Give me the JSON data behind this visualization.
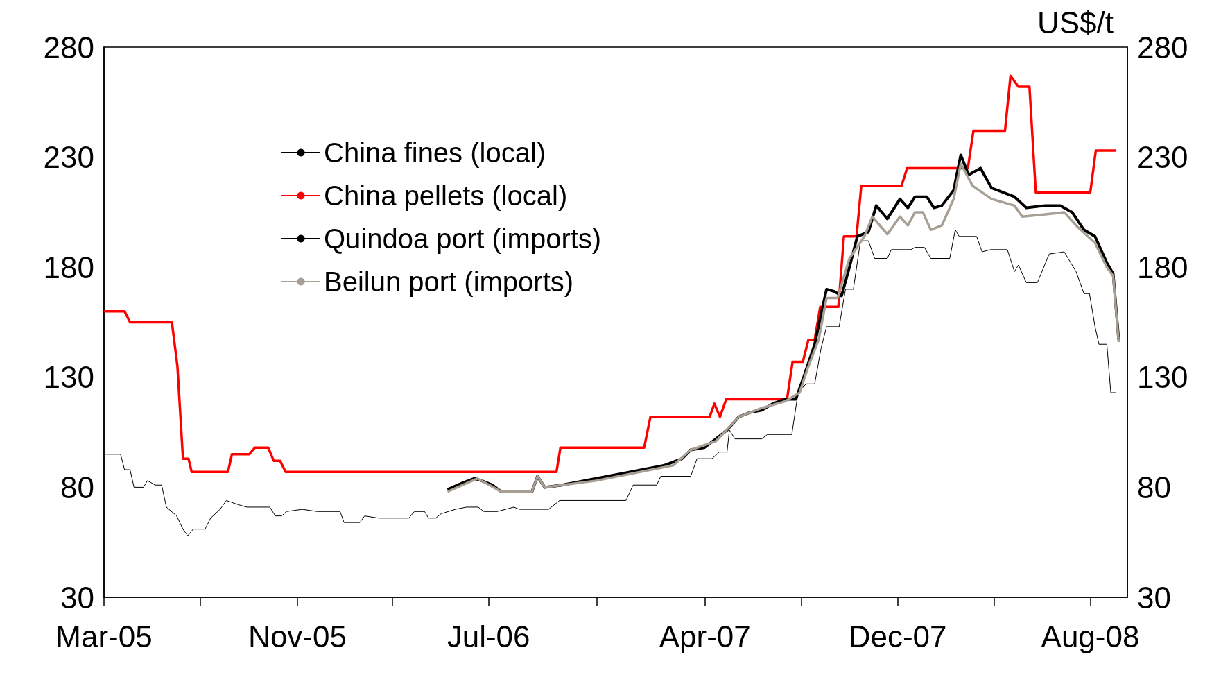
{
  "chart_data": {
    "type": "line",
    "y2label": "US$/t",
    "xlim": [
      "2005-03-01",
      "2008-09-17"
    ],
    "xticks": [
      {
        "value": "2005-03-01",
        "label": "Mar-05"
      },
      {
        "value": "2005-07-01",
        "label": null
      },
      {
        "value": "2005-11-01",
        "label": "Nov-05"
      },
      {
        "value": "2006-03-01",
        "label": null
      },
      {
        "value": "2006-07-01",
        "label": "Jul-06"
      },
      {
        "value": "2006-11-15",
        "label": null
      },
      {
        "value": "2007-04-01",
        "label": "Apr-07"
      },
      {
        "value": "2007-08-01",
        "label": null
      },
      {
        "value": "2007-12-01",
        "label": "Dec-07"
      },
      {
        "value": "2008-04-01",
        "label": null
      },
      {
        "value": "2008-08-01",
        "label": "Aug-08"
      }
    ],
    "ylim": [
      30,
      280
    ],
    "yticks": [
      30,
      80,
      130,
      180,
      230,
      280
    ],
    "y2lim": [
      30,
      280
    ],
    "y2ticks": [
      30,
      80,
      130,
      180,
      230,
      280
    ],
    "grid": false,
    "legend": "top left",
    "series": [
      {
        "name": "China fines (local)",
        "color": "#000000",
        "x": [
          "2005-03-01",
          "2005-03-22",
          "2005-03-27",
          "2005-04-03",
          "2005-04-08",
          "2005-04-20",
          "2005-04-25",
          "2005-05-05",
          "2005-05-13",
          "2005-05-19",
          "2005-06-01",
          "2005-06-09",
          "2005-06-15",
          "2005-06-22",
          "2005-07-07",
          "2005-07-14",
          "2005-07-26",
          "2005-08-03",
          "2005-08-19",
          "2005-08-29",
          "2005-09-27",
          "2005-10-04",
          "2005-10-12",
          "2005-10-18",
          "2005-11-07",
          "2005-11-26",
          "2005-12-25",
          "2005-12-30",
          "2006-01-19",
          "2006-01-25",
          "2006-02-12",
          "2006-03-22",
          "2006-03-29",
          "2006-04-11",
          "2006-04-16",
          "2006-04-25",
          "2006-05-02",
          "2006-05-20",
          "2006-06-03",
          "2006-06-18",
          "2006-06-25",
          "2006-07-12",
          "2006-08-02",
          "2006-08-09",
          "2006-09-15",
          "2006-09-29",
          "2006-12-22",
          "2006-12-31",
          "2007-01-30",
          "2007-02-04",
          "2007-03-14",
          "2007-03-22",
          "2007-04-10",
          "2007-04-19",
          "2007-04-29",
          "2007-05-02",
          "2007-05-09",
          "2007-06-12",
          "2007-06-19",
          "2007-07-20",
          "2007-07-28",
          "2007-08-07",
          "2007-08-18",
          "2007-08-26",
          "2007-09-02",
          "2007-09-18",
          "2007-09-26",
          "2007-10-06",
          "2007-10-15",
          "2007-10-25",
          "2007-11-02",
          "2007-11-18",
          "2007-11-23",
          "2007-12-18",
          "2007-12-23",
          "2008-01-04",
          "2008-01-12",
          "2008-02-05",
          "2008-02-12",
          "2008-02-17",
          "2008-03-10",
          "2008-03-17",
          "2008-03-28",
          "2008-04-18",
          "2008-04-27",
          "2008-05-02",
          "2008-05-12",
          "2008-05-26",
          "2008-06-10",
          "2008-06-29",
          "2008-07-14",
          "2008-07-24",
          "2008-07-31",
          "2008-08-07",
          "2008-08-12",
          "2008-08-22",
          "2008-08-27",
          "2008-09-03"
        ],
        "values": [
          95,
          95,
          88,
          88,
          80,
          80,
          83,
          81,
          81,
          71,
          67,
          61,
          58,
          61,
          61,
          66,
          70,
          74,
          72,
          71,
          71,
          67,
          67,
          69,
          70,
          69,
          69,
          64,
          64,
          67,
          66,
          66,
          69,
          69,
          66,
          66,
          68,
          70,
          71,
          71,
          69,
          69,
          71,
          70,
          70,
          74,
          74,
          81,
          81,
          85,
          85,
          93,
          93,
          96,
          96,
          106,
          102,
          102,
          104,
          104,
          123,
          127,
          127,
          143,
          153,
          153,
          170,
          170,
          192,
          192,
          184,
          184,
          188,
          188,
          189,
          189,
          184,
          184,
          197,
          194,
          194,
          187,
          188,
          188,
          178,
          181,
          173,
          173,
          186,
          187,
          178,
          168,
          168,
          153,
          145,
          145,
          123,
          123
        ]
      },
      {
        "name": "China pellets (local)",
        "color": "#ff0000",
        "x": [
          "2005-03-01",
          "2005-03-27",
          "2005-04-03",
          "2005-05-26",
          "2005-06-02",
          "2005-06-09",
          "2005-06-16",
          "2005-06-20",
          "2005-08-05",
          "2005-08-10",
          "2005-09-01",
          "2005-09-08",
          "2005-09-25",
          "2005-10-02",
          "2005-10-10",
          "2005-10-17",
          "2006-09-25",
          "2006-09-30",
          "2007-01-14",
          "2007-01-22",
          "2007-04-07",
          "2007-04-13",
          "2007-04-20",
          "2007-04-28",
          "2007-07-14",
          "2007-07-21",
          "2007-08-03",
          "2007-08-10",
          "2007-08-18",
          "2007-08-25",
          "2007-09-17",
          "2007-09-24",
          "2007-10-10",
          "2007-10-16",
          "2007-12-06",
          "2007-12-13",
          "2008-02-28",
          "2008-03-06",
          "2008-04-15",
          "2008-04-22",
          "2008-05-02",
          "2008-05-16",
          "2008-05-24",
          "2008-08-01",
          "2008-08-08",
          "2008-09-03"
        ],
        "values": [
          160,
          160,
          155,
          155,
          135,
          93,
          93,
          87,
          87,
          95,
          95,
          98,
          98,
          92,
          92,
          87,
          87,
          98,
          98,
          112,
          112,
          118,
          112,
          120,
          120,
          137,
          137,
          147,
          147,
          162,
          162,
          194,
          194,
          217,
          217,
          225,
          225,
          242,
          242,
          267,
          262,
          262,
          214,
          214,
          233,
          233
        ]
      },
      {
        "name": "Quindoa port (imports)",
        "color": "#000000",
        "x": [
          "2006-05-10",
          "2006-05-29",
          "2006-06-13",
          "2006-06-22",
          "2006-07-06",
          "2006-07-17",
          "2006-08-25",
          "2006-09-01",
          "2006-09-10",
          "2006-10-02",
          "2006-11-14",
          "2006-12-28",
          "2007-02-09",
          "2007-03-03",
          "2007-03-14",
          "2007-03-31",
          "2007-04-15",
          "2007-04-29",
          "2007-05-14",
          "2007-05-28",
          "2007-06-12",
          "2007-06-26",
          "2007-07-11",
          "2007-07-25",
          "2007-08-04",
          "2007-08-18",
          "2007-09-02",
          "2007-09-12",
          "2007-09-21",
          "2007-10-01",
          "2007-10-11",
          "2007-10-25",
          "2007-11-04",
          "2007-11-18",
          "2007-12-04",
          "2007-12-14",
          "2007-12-23",
          "2008-01-07",
          "2008-01-16",
          "2008-01-26",
          "2008-02-10",
          "2008-02-19",
          "2008-02-29",
          "2008-03-15",
          "2008-03-29",
          "2008-04-27",
          "2008-05-12",
          "2008-06-05",
          "2008-06-24",
          "2008-07-09",
          "2008-07-24",
          "2008-08-07",
          "2008-08-22",
          "2008-08-30",
          "2008-09-06"
        ],
        "values": [
          79,
          82,
          84,
          83,
          81,
          78,
          78,
          85,
          80,
          81,
          84,
          87,
          90,
          93,
          97,
          98,
          102,
          106,
          112,
          114,
          115,
          118,
          120,
          120,
          130,
          145,
          170,
          169,
          167,
          180,
          194,
          196,
          208,
          202,
          211,
          207,
          212,
          212,
          207,
          208,
          215,
          231,
          222,
          225,
          216,
          212,
          207,
          208,
          208,
          205,
          197,
          194,
          182,
          177,
          147
        ]
      },
      {
        "name": "Beilun port (imports)",
        "color": "#a89f94",
        "x": [
          "2006-05-10",
          "2006-06-17",
          "2006-07-17",
          "2006-08-25",
          "2006-09-01",
          "2006-09-10",
          "2006-11-14",
          "2007-02-20",
          "2007-03-14",
          "2007-04-15",
          "2007-05-14",
          "2007-06-12",
          "2007-07-11",
          "2007-07-30",
          "2007-08-09",
          "2007-08-23",
          "2007-09-02",
          "2007-09-16",
          "2007-10-01",
          "2007-10-20",
          "2007-10-30",
          "2007-11-18",
          "2007-12-04",
          "2007-12-14",
          "2007-12-23",
          "2008-01-02",
          "2008-01-12",
          "2008-01-26",
          "2008-02-10",
          "2008-02-19",
          "2008-03-05",
          "2008-03-29",
          "2008-04-27",
          "2008-05-07",
          "2008-06-05",
          "2008-06-29",
          "2008-07-14",
          "2008-08-07",
          "2008-08-22",
          "2008-08-30",
          "2008-09-06"
        ],
        "values": [
          78,
          84,
          78,
          78,
          85,
          80,
          83,
          90,
          97,
          101,
          112,
          116,
          119,
          123,
          134,
          147,
          166,
          166,
          184,
          194,
          203,
          195,
          203,
          199,
          205,
          205,
          197,
          199,
          211,
          227,
          217,
          211,
          208,
          203,
          204,
          205,
          199,
          191,
          180,
          176,
          146
        ]
      }
    ]
  }
}
